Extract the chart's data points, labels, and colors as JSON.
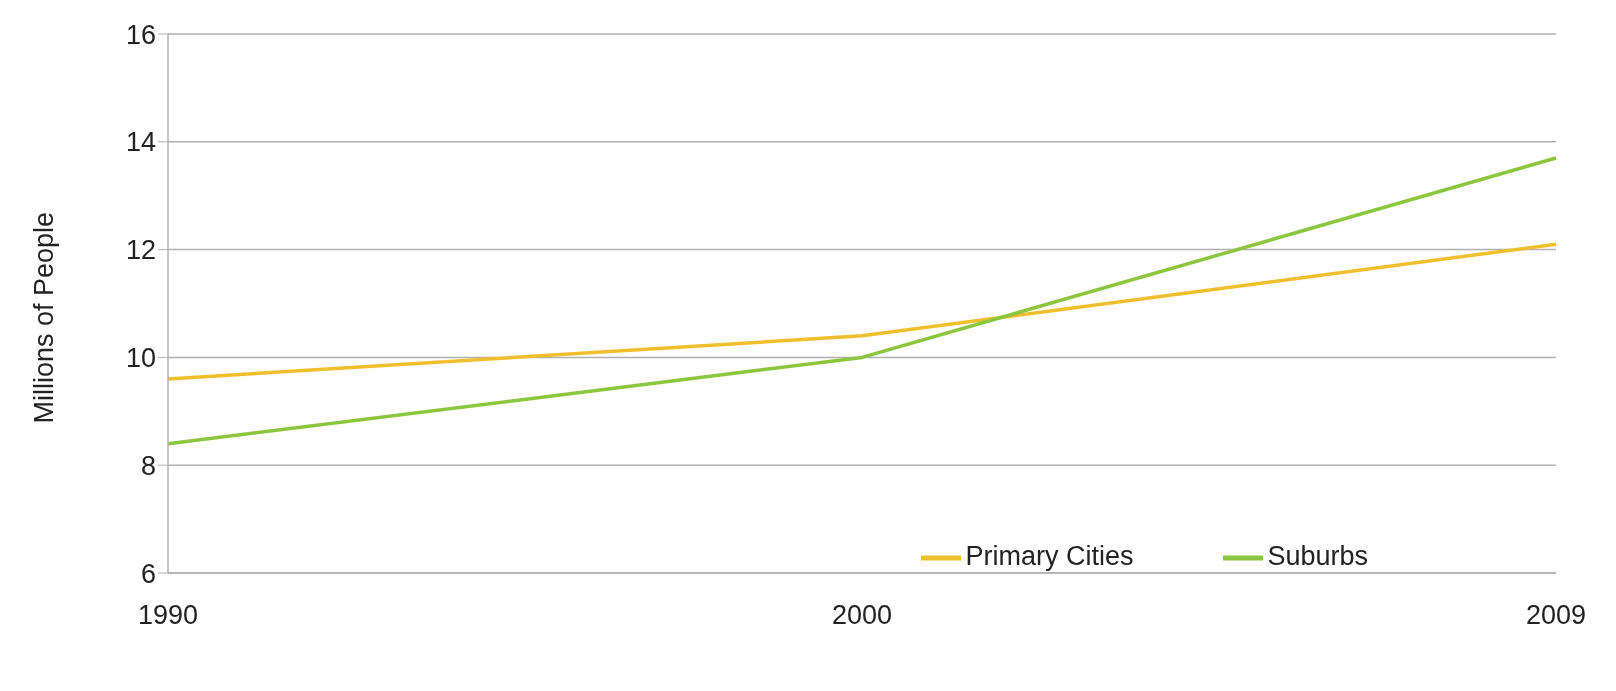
{
  "chart_data": {
    "type": "line",
    "ylabel": "Millions of People",
    "categories": [
      "1990",
      "2000",
      "2009"
    ],
    "series": [
      {
        "name": "Primary Cities",
        "color": "#f0bf2e",
        "values": [
          9.6,
          10.4,
          12.1
        ]
      },
      {
        "name": "Suburbs",
        "color": "#8cc63e",
        "values": [
          8.4,
          10.0,
          13.7
        ]
      }
    ],
    "ylim": [
      6,
      16
    ],
    "yticks": [
      6,
      8,
      10,
      12,
      14,
      16
    ],
    "grid": "y",
    "legend": "bottom right",
    "marker": "none",
    "line_style": "solid"
  }
}
